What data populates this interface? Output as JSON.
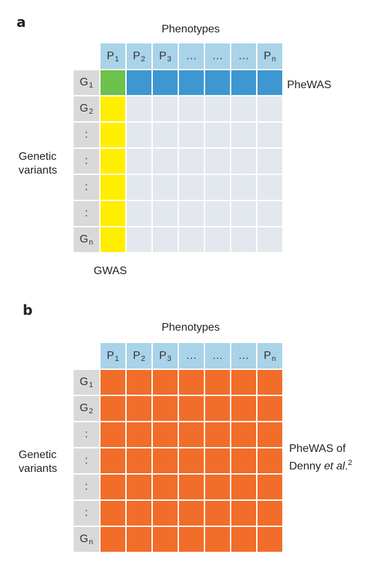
{
  "panel_a": {
    "label": "a",
    "top_title": "Phenotypes",
    "left_title_line1": "Genetic",
    "left_title_line2": "variants",
    "right_label": "PheWAS",
    "bottom_label": "GWAS",
    "columns": [
      {
        "base": "P",
        "sub": "1"
      },
      {
        "base": "P",
        "sub": "2"
      },
      {
        "base": "P",
        "sub": "3"
      },
      {
        "base": "…",
        "sub": ""
      },
      {
        "base": "…",
        "sub": ""
      },
      {
        "base": "…",
        "sub": ""
      },
      {
        "base": "P",
        "sub": "n"
      }
    ],
    "rows": [
      {
        "base": "G",
        "sub": "1"
      },
      {
        "base": "G",
        "sub": "2"
      },
      {
        "base": ":",
        "sub": ""
      },
      {
        "base": ":",
        "sub": ""
      },
      {
        "base": ":",
        "sub": ""
      },
      {
        "base": ":",
        "sub": ""
      },
      {
        "base": "G",
        "sub": "n"
      }
    ]
  },
  "panel_b": {
    "label": "b",
    "top_title": "Phenotypes",
    "left_title_line1": "Genetic",
    "left_title_line2": "variants",
    "right_label_line1": "PheWAS of",
    "right_label_line2_prefix": "Denny ",
    "right_label_line2_italic": "et al",
    "right_label_line2_suffix": ".",
    "right_label_superscript": "2",
    "columns": [
      {
        "base": "P",
        "sub": "1"
      },
      {
        "base": "P",
        "sub": "2"
      },
      {
        "base": "P",
        "sub": "3"
      },
      {
        "base": "…",
        "sub": ""
      },
      {
        "base": "…",
        "sub": ""
      },
      {
        "base": "…",
        "sub": ""
      },
      {
        "base": "P",
        "sub": "n"
      }
    ],
    "rows": [
      {
        "base": "G",
        "sub": "1"
      },
      {
        "base": "G",
        "sub": "2"
      },
      {
        "base": ":",
        "sub": ""
      },
      {
        "base": ":",
        "sub": ""
      },
      {
        "base": ":",
        "sub": ""
      },
      {
        "base": ":",
        "sub": ""
      },
      {
        "base": "G",
        "sub": "n"
      }
    ]
  },
  "colors": {
    "header": "#a9d3e8",
    "row_header": "#d9d9d9",
    "empty": "#e3e8ee",
    "gwas": "#ffee00",
    "phewas": "#3f97d1",
    "overlap": "#6cc24a",
    "all": "#f26d2a"
  }
}
